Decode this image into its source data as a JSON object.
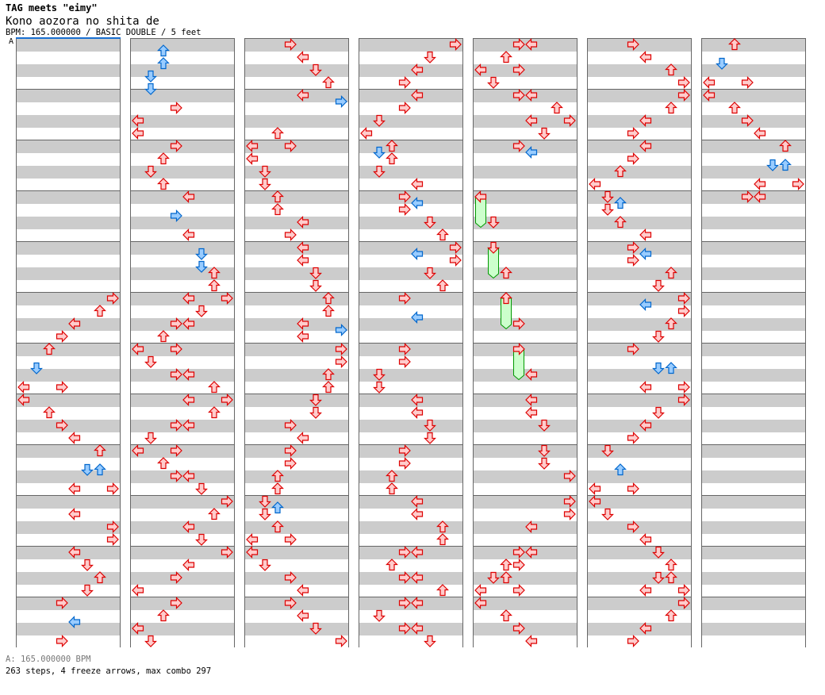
{
  "header": {
    "title": "TAG meets \"eimy\"",
    "song": "Kono aozora no shita de",
    "info": "BPM: 165.000000 / BASIC DOUBLE / 5 feet"
  },
  "bpm_marker": "A",
  "footer": {
    "bpm_line": "A: 165.000000 BPM",
    "stats": "263 steps, 4 freeze arrows, max combo 297"
  },
  "colors": {
    "quarter_fill": "#ffcccc",
    "quarter_stroke": "#dd0000",
    "eighth_fill": "#99ccff",
    "eighth_stroke": "#0066cc",
    "freeze_fill": "#ccffcc",
    "freeze_stroke": "#009900",
    "stripe": "#cccccc",
    "bpm_line": "#1a6fd1"
  },
  "lanes": [
    "left",
    "down",
    "up",
    "right",
    "left",
    "down",
    "up",
    "right"
  ],
  "chart": {
    "measures_per_column": 12,
    "note_format": "[eighth_in_measure, lane, lane...]",
    "columns": [
      [
        [],
        [],
        [],
        [],
        [],
        [
          [
            0,
            7
          ],
          [
            2,
            6
          ],
          [
            4,
            4
          ],
          [
            6,
            3
          ]
        ],
        [
          [
            0,
            2
          ],
          [
            3,
            1
          ],
          [
            6,
            0,
            3
          ]
        ],
        [
          [
            0,
            0
          ],
          [
            2,
            2
          ],
          [
            4,
            3
          ],
          [
            6,
            4
          ]
        ],
        [
          [
            0,
            6
          ],
          [
            3,
            5,
            6
          ],
          [
            6,
            4,
            7
          ]
        ],
        [
          [
            2,
            4
          ],
          [
            4,
            7
          ],
          [
            6,
            7
          ]
        ],
        [
          [
            0,
            4
          ],
          [
            2,
            5
          ],
          [
            4,
            6
          ],
          [
            6,
            5
          ]
        ],
        [
          [
            0,
            3
          ],
          [
            3,
            4
          ],
          [
            6,
            3
          ]
        ]
      ],
      [
        [
          [
            1,
            2
          ],
          [
            3,
            2
          ],
          [
            5,
            1
          ],
          [
            7,
            1
          ]
        ],
        [
          [
            2,
            3
          ],
          [
            4,
            0
          ],
          [
            6,
            0
          ]
        ],
        [
          [
            0,
            3
          ],
          [
            2,
            2
          ],
          [
            4,
            1
          ],
          [
            6,
            2
          ]
        ],
        [
          [
            0,
            4
          ],
          [
            3,
            3
          ],
          [
            6,
            4
          ]
        ],
        [
          [
            1,
            5
          ],
          [
            3,
            5
          ],
          [
            4,
            6
          ],
          [
            6,
            6
          ]
        ],
        [
          [
            0,
            4,
            7
          ],
          [
            2,
            5
          ],
          [
            4,
            3,
            4
          ],
          [
            6,
            2
          ]
        ],
        [
          [
            0,
            0,
            3
          ],
          [
            2,
            1
          ],
          [
            4,
            3,
            4
          ],
          [
            6,
            6
          ]
        ],
        [
          [
            0,
            4,
            7
          ],
          [
            2,
            6
          ],
          [
            4,
            3,
            4
          ],
          [
            6,
            1
          ]
        ],
        [
          [
            0,
            0,
            3
          ],
          [
            2,
            2
          ],
          [
            4,
            3,
            4
          ],
          [
            6,
            5
          ]
        ],
        [
          [
            0,
            7
          ],
          [
            2,
            6
          ],
          [
            4,
            4
          ],
          [
            6,
            5
          ]
        ],
        [
          [
            0,
            7
          ],
          [
            2,
            4
          ],
          [
            4,
            3
          ],
          [
            6,
            0
          ]
        ],
        [
          [
            0,
            3
          ],
          [
            2,
            2
          ],
          [
            4,
            0
          ],
          [
            6,
            1
          ]
        ]
      ],
      [
        [
          [
            0,
            3
          ],
          [
            2,
            4
          ],
          [
            4,
            5
          ],
          [
            6,
            6
          ]
        ],
        [
          [
            0,
            4
          ],
          [
            1,
            7
          ],
          [
            6,
            2
          ]
        ],
        [
          [
            0,
            0,
            3
          ],
          [
            2,
            0
          ],
          [
            4,
            1
          ],
          [
            6,
            1
          ]
        ],
        [
          [
            0,
            2
          ],
          [
            2,
            2
          ],
          [
            4,
            4
          ],
          [
            6,
            3
          ]
        ],
        [
          [
            0,
            4
          ],
          [
            2,
            4
          ],
          [
            4,
            5
          ],
          [
            6,
            5
          ]
        ],
        [
          [
            0,
            6
          ],
          [
            2,
            6
          ],
          [
            4,
            4
          ],
          [
            5,
            7
          ],
          [
            6,
            4
          ]
        ],
        [
          [
            0,
            7
          ],
          [
            2,
            7
          ],
          [
            4,
            6
          ],
          [
            6,
            6
          ]
        ],
        [
          [
            0,
            5
          ],
          [
            2,
            5
          ],
          [
            4,
            3
          ],
          [
            6,
            4
          ]
        ],
        [
          [
            0,
            3
          ],
          [
            2,
            3
          ],
          [
            4,
            2
          ],
          [
            6,
            2
          ]
        ],
        [
          [
            0,
            1
          ],
          [
            1,
            2
          ],
          [
            2,
            1
          ],
          [
            4,
            2
          ],
          [
            6,
            0,
            3
          ]
        ],
        [
          [
            0,
            0
          ],
          [
            2,
            1
          ],
          [
            4,
            3
          ],
          [
            6,
            4
          ]
        ],
        [
          [
            0,
            3
          ],
          [
            2,
            4
          ],
          [
            4,
            5
          ],
          [
            6,
            7
          ]
        ]
      ],
      [
        [
          [
            0,
            7
          ],
          [
            2,
            5
          ],
          [
            4,
            4
          ],
          [
            6,
            3
          ]
        ],
        [
          [
            0,
            4
          ],
          [
            2,
            3
          ],
          [
            4,
            1
          ],
          [
            6,
            0
          ]
        ],
        [
          [
            0,
            2
          ],
          [
            1,
            1
          ],
          [
            2,
            2
          ],
          [
            4,
            1
          ],
          [
            6,
            4
          ]
        ],
        [
          [
            0,
            3
          ],
          [
            1,
            4
          ],
          [
            2,
            3
          ],
          [
            4,
            5
          ],
          [
            6,
            6
          ]
        ],
        [
          [
            0,
            7
          ],
          [
            1,
            4
          ],
          [
            2,
            7
          ],
          [
            4,
            5
          ],
          [
            6,
            6
          ]
        ],
        [
          [
            0,
            3
          ],
          [
            3,
            4
          ]
        ],
        [
          [
            0,
            3
          ],
          [
            2,
            3
          ],
          [
            4,
            1
          ],
          [
            6,
            1
          ]
        ],
        [
          [
            0,
            4
          ],
          [
            2,
            4
          ],
          [
            4,
            5
          ],
          [
            6,
            5
          ]
        ],
        [
          [
            0,
            3
          ],
          [
            2,
            3
          ],
          [
            4,
            2
          ],
          [
            6,
            2
          ]
        ],
        [
          [
            0,
            4
          ],
          [
            2,
            4
          ],
          [
            4,
            6
          ],
          [
            6,
            6
          ]
        ],
        [
          [
            0,
            3,
            4
          ],
          [
            2,
            2
          ],
          [
            4,
            3,
            4
          ],
          [
            6,
            6
          ]
        ],
        [
          [
            0,
            3,
            4
          ],
          [
            2,
            1
          ],
          [
            4,
            3,
            4
          ],
          [
            6,
            5
          ]
        ]
      ],
      [
        [
          [
            0,
            3,
            4
          ],
          [
            2,
            2
          ],
          [
            4,
            0,
            3
          ],
          [
            6,
            1
          ]
        ],
        [
          [
            0,
            3,
            4
          ],
          [
            2,
            6
          ],
          [
            4,
            4,
            7
          ],
          [
            6,
            5
          ]
        ],
        [
          [
            0,
            3
          ],
          [
            1,
            4
          ]
        ],
        [
          [
            0,
            0
          ],
          [
            4,
            1
          ]
        ],
        [
          [
            0,
            1
          ],
          [
            4,
            2
          ]
        ],
        [
          [
            0,
            2
          ],
          [
            4,
            3
          ]
        ],
        [
          [
            0,
            3
          ],
          [
            4,
            4
          ]
        ],
        [
          [
            0,
            4
          ],
          [
            2,
            4
          ],
          [
            4,
            5
          ]
        ],
        [
          [
            0,
            5
          ],
          [
            2,
            5
          ],
          [
            4,
            7
          ]
        ],
        [
          [
            0,
            7
          ],
          [
            2,
            7
          ],
          [
            4,
            4
          ]
        ],
        [
          [
            0,
            3,
            4
          ],
          [
            2,
            2,
            3
          ],
          [
            4,
            1,
            2
          ],
          [
            6,
            0,
            3
          ]
        ],
        [
          [
            0,
            0
          ],
          [
            2,
            2
          ],
          [
            4,
            3
          ],
          [
            6,
            4
          ]
        ]
      ],
      [
        [
          [
            0,
            3
          ],
          [
            2,
            4
          ],
          [
            4,
            6
          ],
          [
            6,
            7
          ]
        ],
        [
          [
            0,
            7
          ],
          [
            2,
            6
          ],
          [
            4,
            4
          ],
          [
            6,
            3
          ]
        ],
        [
          [
            0,
            4
          ],
          [
            2,
            3
          ],
          [
            4,
            2
          ],
          [
            6,
            0
          ]
        ],
        [
          [
            0,
            1
          ],
          [
            1,
            2
          ],
          [
            2,
            1
          ],
          [
            4,
            2
          ],
          [
            6,
            4
          ]
        ],
        [
          [
            0,
            3
          ],
          [
            1,
            4
          ],
          [
            2,
            3
          ],
          [
            4,
            6
          ],
          [
            6,
            5
          ]
        ],
        [
          [
            0,
            7
          ],
          [
            1,
            4
          ],
          [
            2,
            7
          ],
          [
            4,
            6
          ],
          [
            6,
            5
          ]
        ],
        [
          [
            0,
            3
          ],
          [
            3,
            5,
            6
          ],
          [
            6,
            4,
            7
          ]
        ],
        [
          [
            0,
            7
          ],
          [
            2,
            5
          ],
          [
            4,
            4
          ],
          [
            6,
            3
          ]
        ],
        [
          [
            0,
            1
          ],
          [
            3,
            2
          ],
          [
            6,
            0,
            3
          ]
        ],
        [
          [
            0,
            0
          ],
          [
            2,
            1
          ],
          [
            4,
            3
          ],
          [
            6,
            4
          ]
        ],
        [
          [
            0,
            5
          ],
          [
            2,
            6
          ],
          [
            4,
            5,
            6
          ],
          [
            6,
            4,
            7
          ]
        ],
        [
          [
            0,
            7
          ],
          [
            2,
            6
          ],
          [
            4,
            4
          ],
          [
            6,
            3
          ]
        ]
      ],
      [
        [
          [
            0,
            2
          ],
          [
            3,
            1
          ],
          [
            6,
            0,
            3
          ]
        ],
        [
          [
            0,
            0
          ],
          [
            2,
            2
          ],
          [
            4,
            3
          ],
          [
            6,
            4
          ]
        ],
        [
          [
            0,
            6
          ],
          [
            3,
            5,
            6
          ],
          [
            6,
            4,
            7
          ]
        ],
        [
          [
            0,
            3,
            4
          ]
        ],
        [],
        [],
        [],
        [],
        [],
        [],
        [],
        []
      ]
    ],
    "freeze_format": "[column, measure, start_eighth, end_eighth, lane]",
    "freezes": [
      [
        4,
        3,
        0,
        4,
        0
      ],
      [
        4,
        4,
        0,
        4,
        1
      ],
      [
        4,
        5,
        0,
        4,
        2
      ],
      [
        4,
        6,
        0,
        4,
        3
      ]
    ]
  }
}
